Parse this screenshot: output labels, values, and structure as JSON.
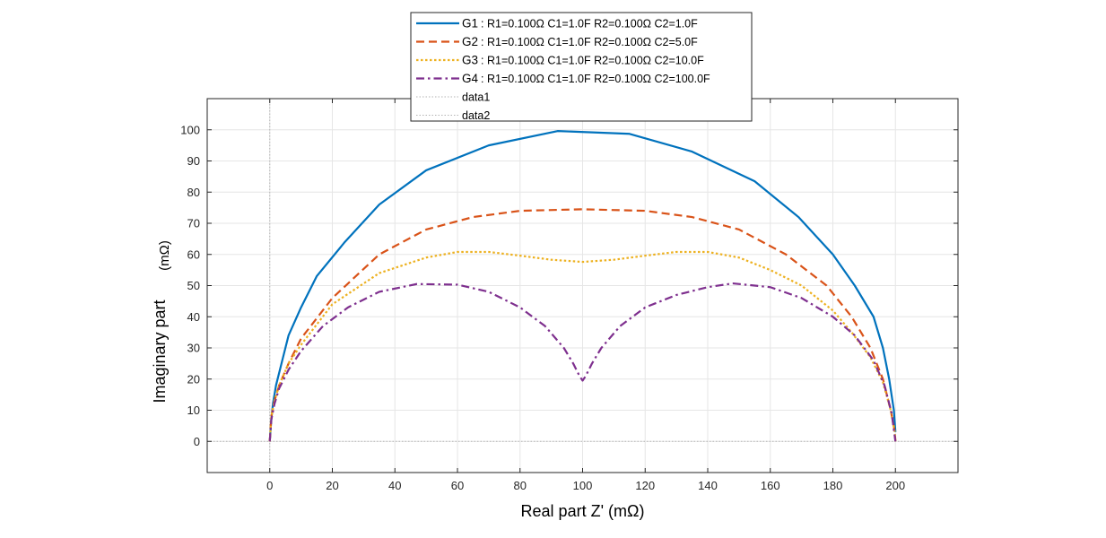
{
  "chart_data": {
    "type": "line",
    "xlabel": "Real part Z' (mΩ)",
    "ylabel": "Imaginary part",
    "ylabel_unit": "(mΩ)",
    "xlim": [
      -20,
      220
    ],
    "ylim": [
      -10,
      110
    ],
    "xticks": [
      0,
      20,
      40,
      60,
      80,
      100,
      120,
      140,
      160,
      180,
      200
    ],
    "yticks": [
      0,
      10,
      20,
      30,
      40,
      50,
      60,
      70,
      80,
      90,
      100
    ],
    "ytick_labels": [
      "0",
      "10",
      "20",
      "30",
      "40",
      "50",
      "60",
      "70",
      "80",
      "90",
      "100"
    ],
    "grid": true,
    "legend_position": "top-center",
    "series": [
      {
        "name": "G1",
        "desc": ": R1=0.100Ω C1=1.0F R2=0.100Ω C2=1.0F",
        "color": "#0072BD",
        "style": "solid",
        "x": [
          0,
          0.5,
          1,
          2,
          4,
          6,
          10,
          15,
          24,
          35,
          50,
          70,
          92,
          115,
          135,
          155,
          169,
          180,
          187,
          193,
          196,
          198,
          199.5,
          200
        ],
        "y": [
          0,
          7,
          12,
          18,
          26,
          34,
          43,
          53,
          64,
          76,
          87,
          95,
          99.6,
          98.7,
          93,
          83.5,
          72,
          60,
          50,
          40,
          30,
          20,
          10,
          3
        ]
      },
      {
        "name": "G2",
        "desc": ": R1=0.100Ω C1=1.0F R2=0.100Ω C2=5.0F",
        "color": "#D95319",
        "style": "dashed",
        "x": [
          0,
          0.5,
          1.5,
          3,
          6,
          10,
          20,
          35,
          50,
          65,
          80,
          100,
          120,
          135,
          150,
          165,
          178,
          186,
          192,
          196,
          198.5,
          199.8,
          200
        ],
        "y": [
          0,
          8,
          13,
          18,
          25,
          33,
          46,
          60,
          68,
          72,
          74,
          74.5,
          74,
          72,
          68,
          60,
          50,
          40,
          30,
          20,
          10,
          3,
          0
        ]
      },
      {
        "name": "G3",
        "desc": ": R1=0.100Ω C1=1.0F R2=0.100Ω C2=10.0F",
        "color": "#EDB120",
        "style": "dotted",
        "x": [
          0,
          0.5,
          1.5,
          3,
          6,
          10,
          20,
          35,
          50,
          60,
          70,
          80,
          90,
          100,
          110,
          120,
          130,
          140,
          150,
          160,
          170,
          180,
          186,
          192,
          196,
          198.5,
          199.8,
          200
        ],
        "y": [
          0,
          8,
          13,
          18,
          25,
          31,
          44,
          54,
          59,
          60.8,
          60.8,
          59.6,
          58.3,
          57.6,
          58.3,
          59.6,
          60.8,
          60.8,
          59,
          55,
          50,
          42,
          35,
          27,
          19,
          10,
          3,
          0
        ]
      },
      {
        "name": "G4",
        "desc": ": R1=0.100Ω C1=1.0F R2=0.100Ω C2=100.0F",
        "color": "#7E2F8E",
        "style": "dashdot",
        "x": [
          0,
          0.5,
          1.5,
          3,
          6,
          10,
          17,
          25,
          35,
          47,
          60,
          70,
          80,
          88,
          94,
          97,
          99,
          100,
          101,
          103,
          106,
          112,
          120,
          130,
          140,
          148,
          160,
          170,
          180,
          187,
          193,
          196.5,
          198.8,
          200
        ],
        "y": [
          0,
          7,
          12,
          17,
          23,
          29,
          37,
          43,
          48,
          50.5,
          50.3,
          48,
          43,
          37,
          30,
          25,
          21,
          19.5,
          21,
          25,
          30,
          37,
          43,
          47,
          49.5,
          50.7,
          49.5,
          46,
          40,
          34,
          26,
          18,
          9,
          0
        ]
      },
      {
        "name": "data1",
        "desc": "",
        "color": "#b3b3b3",
        "style": "thin-dotted",
        "x": [
          -20,
          220
        ],
        "y": [
          0,
          0
        ]
      },
      {
        "name": "data2",
        "desc": "",
        "color": "#b3b3b3",
        "style": "thin-dotted",
        "x": [
          0,
          0
        ],
        "y": [
          -10,
          110
        ]
      }
    ]
  }
}
